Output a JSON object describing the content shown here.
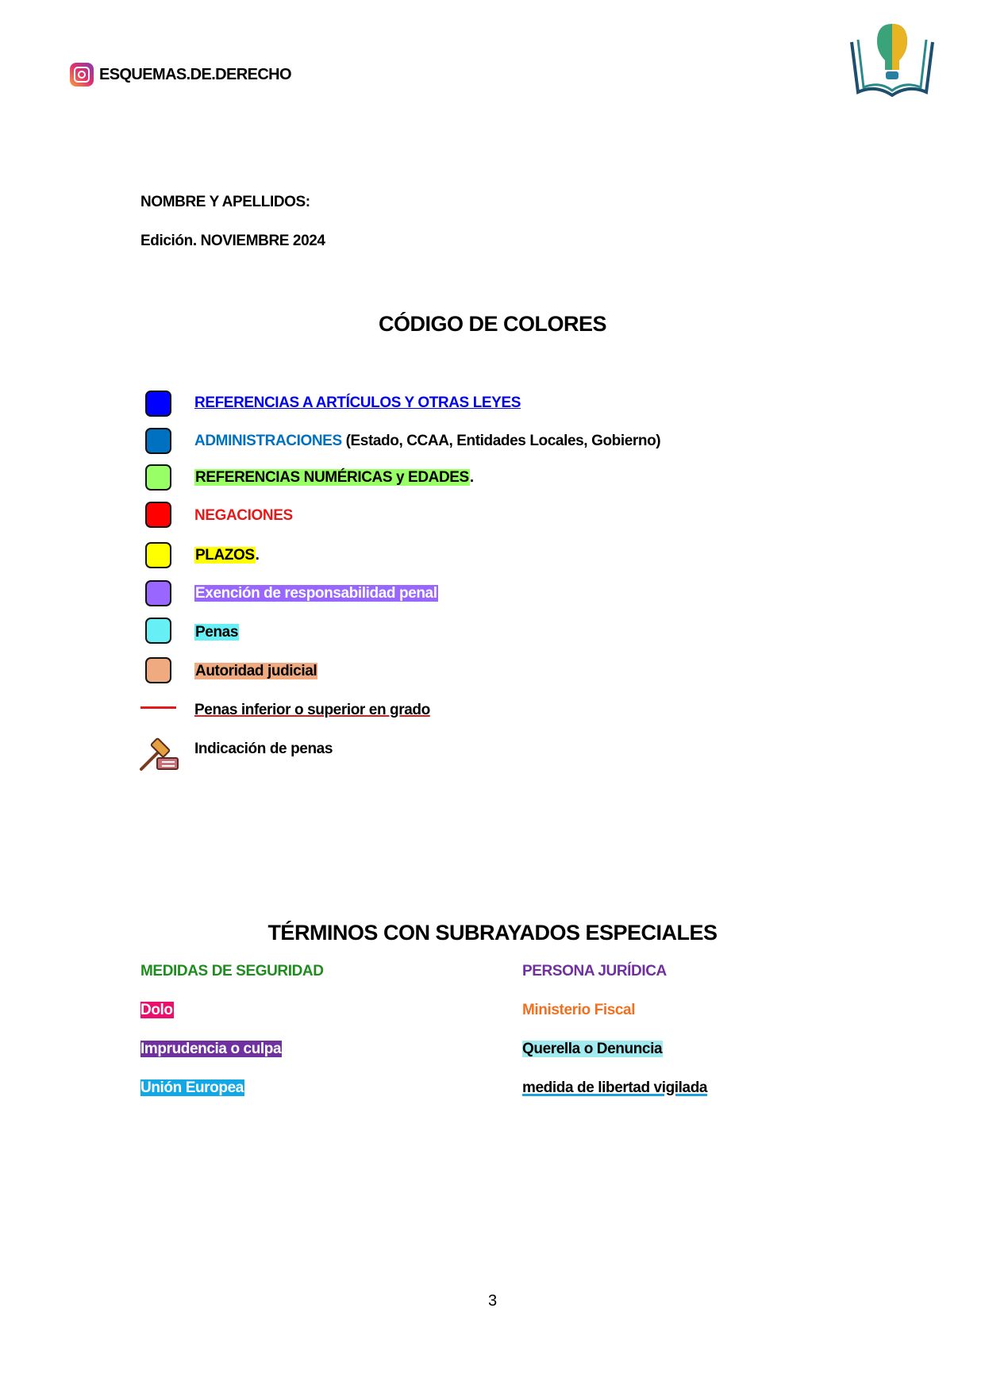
{
  "header": {
    "handle": "ESQUEMAS.DE.DERECHO",
    "instagram_icon": "instagram-icon",
    "logo_icon": "lightbulb-brain-book-logo"
  },
  "form": {
    "name_label": "NOMBRE Y APELLIDOS:",
    "edition": "Edición. NOVIEMBRE 2024"
  },
  "color_code": {
    "title": "CÓDIGO DE COLORES",
    "items": [
      {
        "text": "REFERENCIAS A ARTÍCULOS Y OTRAS LEYES",
        "swatch": "#0000FF"
      },
      {
        "text": "ADMINISTRACIONES",
        "suffix": " (Estado, CCAA, Entidades Locales, Gobierno)",
        "swatch": "#0070C0"
      },
      {
        "text": "REFERENCIAS NUMÉRICAS y EDADES",
        "suffix": ".",
        "swatch": "#99FF66"
      },
      {
        "text": "NEGACIONES",
        "swatch": "#FF0000"
      },
      {
        "text": "PLAZOS",
        "suffix": ".",
        "swatch": "#FFFF00"
      },
      {
        "text": "Exención de responsabilidad penal",
        "swatch": "#9966FF"
      },
      {
        "text": "Penas",
        "swatch": "#66F0F5"
      },
      {
        "text": "Autoridad judicial",
        "swatch": "#F0AA80"
      },
      {
        "text": "Penas inferior o superior en grado",
        "swatch": "#E31A1A"
      },
      {
        "text": "Indicación de penas",
        "icon": "gavel-icon"
      }
    ]
  },
  "special_terms": {
    "title": "TÉRMINOS CON SUBRAYADOS ESPECIALES",
    "left": [
      "MEDIDAS DE SEGURIDAD",
      "Dolo",
      "Imprudencia o culpa",
      "Unión Europea"
    ],
    "right": [
      "PERSONA JURÍDICA",
      "Ministerio Fiscal",
      "Querella o Denuncia",
      "medida de libertad vigilada"
    ]
  },
  "page_number": "3"
}
